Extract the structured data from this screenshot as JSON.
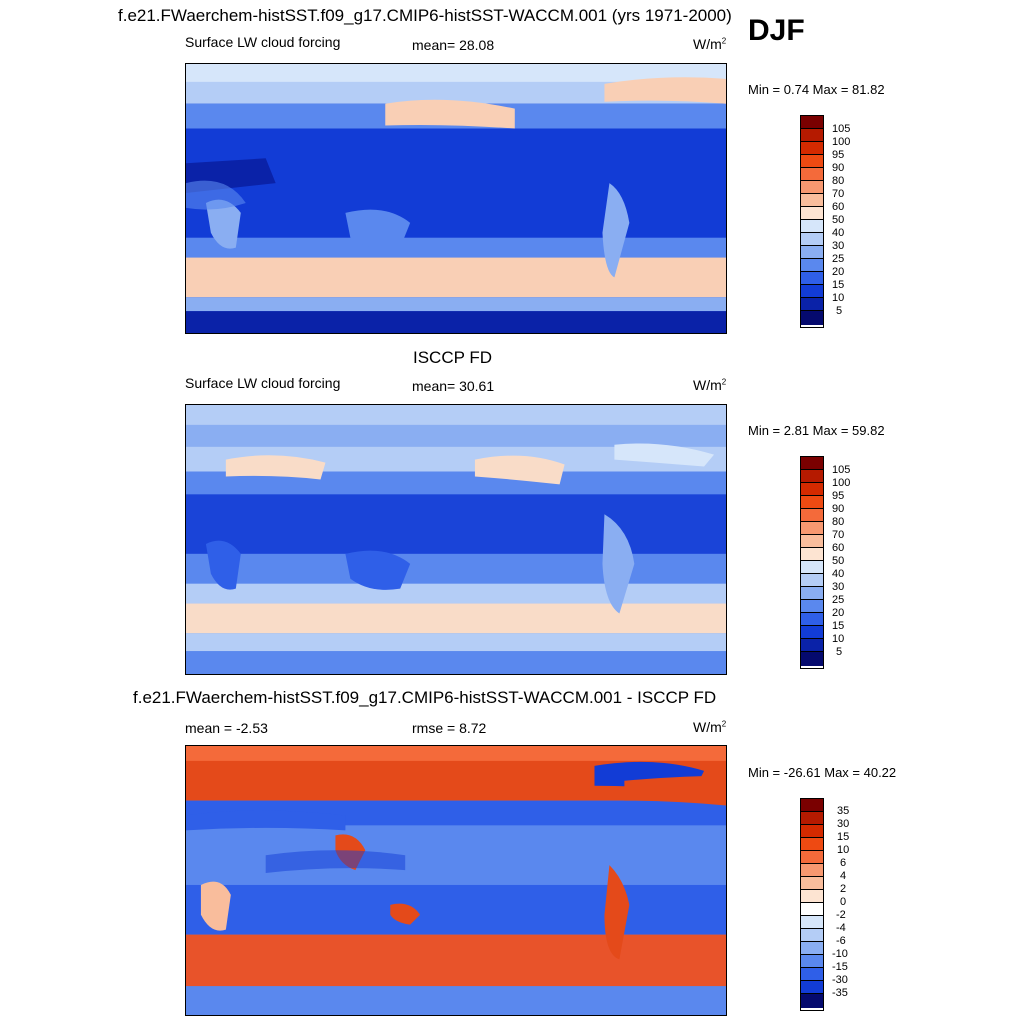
{
  "season": "DJF",
  "panel1": {
    "title": "f.e21.FWaerchem-histSST.f09_g17.CMIP6-histSST-WACCM.001 (yrs 1971-2000)",
    "variable": "Surface LW cloud forcing",
    "stat": "mean=  28.08",
    "units": "W/m",
    "units_sup": "2",
    "minmax": "Min =   0.74 Max =  81.82"
  },
  "panel2": {
    "title": "ISCCP FD",
    "variable": "Surface LW cloud forcing",
    "stat": "mean=  30.61",
    "units": "W/m",
    "units_sup": "2",
    "minmax": "Min =   2.81 Max =  59.82"
  },
  "panel3": {
    "title": "f.e21.FWaerchem-histSST.f09_g17.CMIP6-histSST-WACCM.001 - ISCCP FD",
    "stat_left": "mean =  -2.53",
    "stat_mid": "rmse =   8.72",
    "units": "W/m",
    "units_sup": "2",
    "minmax": "Min = -26.61 Max =  40.22"
  },
  "colorbar_abs": {
    "labels": [
      "105",
      "100",
      "95",
      "90",
      "80",
      "70",
      "60",
      "50",
      "40",
      "30",
      "25",
      "20",
      "15",
      "10",
      "5"
    ],
    "colors": [
      "#7a0000",
      "#b51a00",
      "#d42a00",
      "#ee4a12",
      "#f46a3a",
      "#f79870",
      "#f9bd9c",
      "#fde4d2",
      "#d6e6fa",
      "#b4cdf6",
      "#8aaef2",
      "#5a88ee",
      "#2f5fe8",
      "#123cd6",
      "#0a22a8",
      "#050a6e"
    ]
  },
  "colorbar_diff": {
    "labels": [
      "35",
      "30",
      "15",
      "10",
      "6",
      "4",
      "2",
      "0",
      "-2",
      "-4",
      "-6",
      "-10",
      "-15",
      "-30",
      "-35"
    ],
    "colors": [
      "#7a0000",
      "#b51a00",
      "#d42a00",
      "#ee4a12",
      "#f46a3a",
      "#f79870",
      "#f9bd9c",
      "#fde4d2",
      "#ffffff",
      "#d6e6fa",
      "#b4cdf6",
      "#8aaef2",
      "#5a88ee",
      "#2f5fe8",
      "#123cd6",
      "#050a6e"
    ]
  }
}
